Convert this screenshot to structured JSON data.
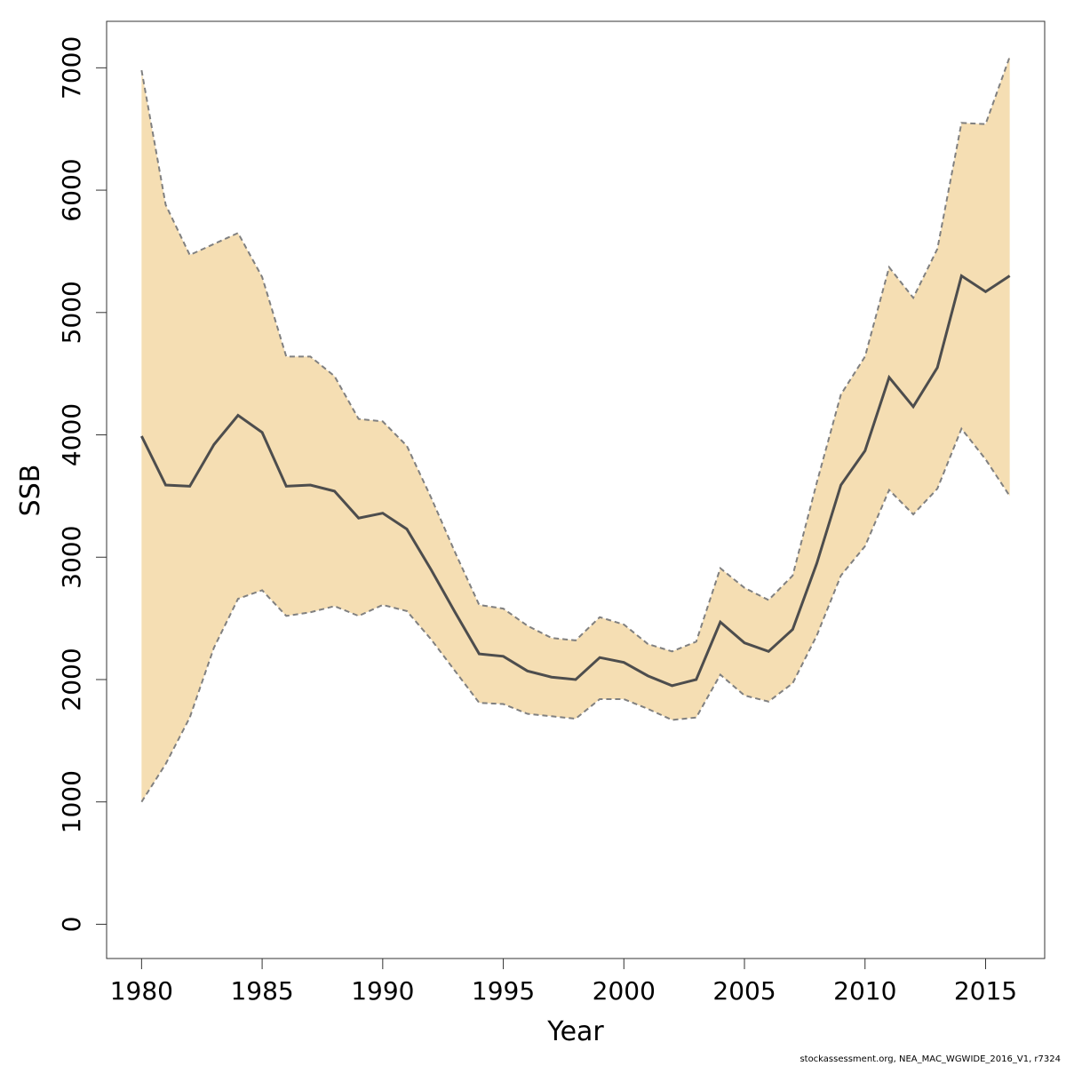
{
  "chart_data": {
    "type": "line",
    "title": "",
    "xlabel": "Year",
    "ylabel": "SSB",
    "xlim": [
      1978.55,
      2017.45
    ],
    "ylim": [
      -280,
      7380
    ],
    "x_ticks": [
      1980,
      1985,
      1990,
      1995,
      2000,
      2005,
      2010,
      2015
    ],
    "y_ticks": [
      0,
      1000,
      2000,
      3000,
      4000,
      5000,
      6000,
      7000
    ],
    "grid": false,
    "legend": "none",
    "x": [
      1980,
      1981,
      1982,
      1983,
      1984,
      1985,
      1986,
      1987,
      1988,
      1989,
      1990,
      1991,
      1992,
      1993,
      1994,
      1995,
      1996,
      1997,
      1998,
      1999,
      2000,
      2001,
      2002,
      2003,
      2004,
      2005,
      2006,
      2007,
      2008,
      2009,
      2010,
      2011,
      2012,
      2013,
      2014,
      2015,
      2016
    ],
    "series": [
      {
        "role": "estimate",
        "values": [
          3990,
          3590,
          3580,
          3920,
          4160,
          4020,
          3580,
          3590,
          3540,
          3320,
          3360,
          3230,
          2900,
          2550,
          2210,
          2190,
          2070,
          2020,
          2000,
          2180,
          2140,
          2030,
          1950,
          2000,
          2470,
          2300,
          2230,
          2410,
          2950,
          3590,
          3870,
          4470,
          4230,
          4550,
          5300,
          5170,
          5300
        ]
      },
      {
        "role": "upper_ci",
        "values": [
          6980,
          5880,
          5470,
          5560,
          5650,
          5290,
          4640,
          4640,
          4480,
          4130,
          4110,
          3910,
          3490,
          3040,
          2610,
          2580,
          2440,
          2340,
          2320,
          2510,
          2450,
          2290,
          2230,
          2310,
          2910,
          2750,
          2650,
          2850,
          3610,
          4330,
          4640,
          5370,
          5120,
          5520,
          6550,
          6540,
          7090
        ]
      },
      {
        "role": "lower_ci",
        "values": [
          1000,
          1310,
          1690,
          2260,
          2660,
          2730,
          2520,
          2550,
          2600,
          2520,
          2610,
          2560,
          2330,
          2070,
          1810,
          1800,
          1720,
          1700,
          1680,
          1840,
          1840,
          1760,
          1670,
          1690,
          2040,
          1870,
          1820,
          1970,
          2360,
          2850,
          3090,
          3550,
          3350,
          3560,
          4050,
          3800,
          3500
        ]
      }
    ],
    "colors": {
      "band": "#f5deb3",
      "line": "#4d4d4d",
      "ci_line": "#808080",
      "axis": "#333333"
    }
  },
  "footer": "stockassessment.org, NEA_MAC_WGWIDE_2016_V1, r7324"
}
